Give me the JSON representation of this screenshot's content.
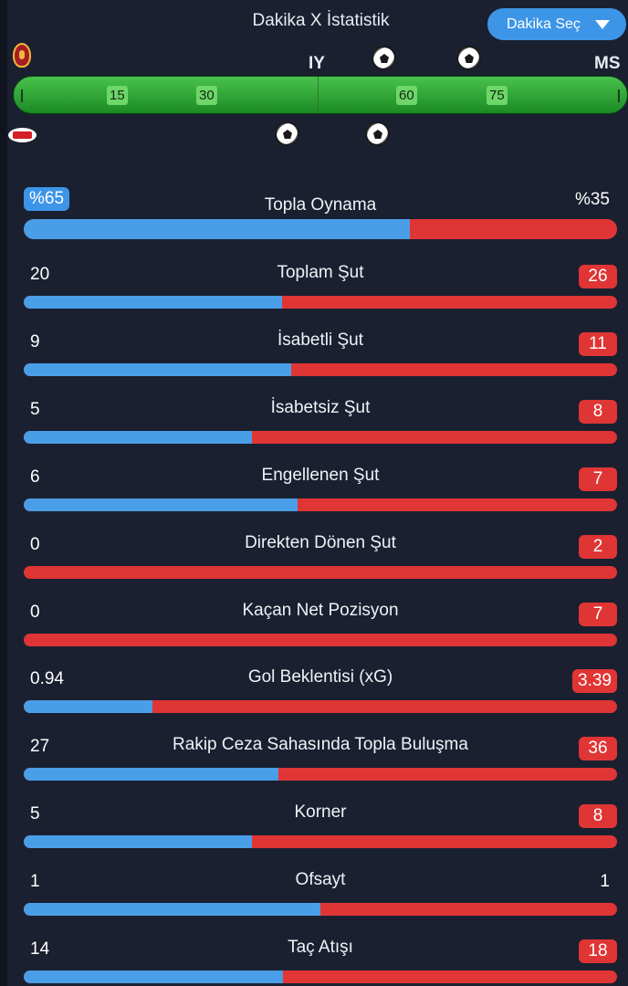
{
  "header": {
    "title": "Dakika X İstatistik",
    "select_label": "Dakika Seç",
    "select_icon": "chevron-down-icon"
  },
  "teams": {
    "home_logo": "galatasaray-logo",
    "away_logo": "az-alkmaar-logo"
  },
  "timeline": {
    "half_label": "IY",
    "full_label": "MS",
    "ticks": [
      "15",
      "30",
      "60",
      "75"
    ],
    "goal_icon": "soccer-ball-icon",
    "home_goals": 2,
    "away_goals": 2
  },
  "colors": {
    "home": "#4a9ee8",
    "away": "#e03535",
    "background": "#1a2030"
  },
  "stats": [
    {
      "label": "Topla Oynama",
      "home": "%65",
      "away": "%35",
      "home_value": 65,
      "away_value": 35
    },
    {
      "label": "Toplam Şut",
      "home": "20",
      "away": "26",
      "home_value": 20,
      "away_value": 26
    },
    {
      "label": "İsabetli Şut",
      "home": "9",
      "away": "11",
      "home_value": 9,
      "away_value": 11
    },
    {
      "label": "İsabetsiz Şut",
      "home": "5",
      "away": "8",
      "home_value": 5,
      "away_value": 8
    },
    {
      "label": "Engellenen Şut",
      "home": "6",
      "away": "7",
      "home_value": 6,
      "away_value": 7
    },
    {
      "label": "Direkten Dönen Şut",
      "home": "0",
      "away": "2",
      "home_value": 0,
      "away_value": 2
    },
    {
      "label": "Kaçan Net Pozisyon",
      "home": "0",
      "away": "7",
      "home_value": 0,
      "away_value": 7
    },
    {
      "label": "Gol Beklentisi (xG)",
      "home": "0.94",
      "away": "3.39",
      "home_value": 0.94,
      "away_value": 3.39
    },
    {
      "label": "Rakip Ceza Sahasında Topla Buluşma",
      "home": "27",
      "away": "36",
      "home_value": 27,
      "away_value": 36
    },
    {
      "label": "Korner",
      "home": "5",
      "away": "8",
      "home_value": 5,
      "away_value": 8
    },
    {
      "label": "Ofsayt",
      "home": "1",
      "away": "1",
      "home_value": 1,
      "away_value": 1
    },
    {
      "label": "Taç Atışı",
      "home": "14",
      "away": "18",
      "home_value": 14,
      "away_value": 18
    }
  ]
}
